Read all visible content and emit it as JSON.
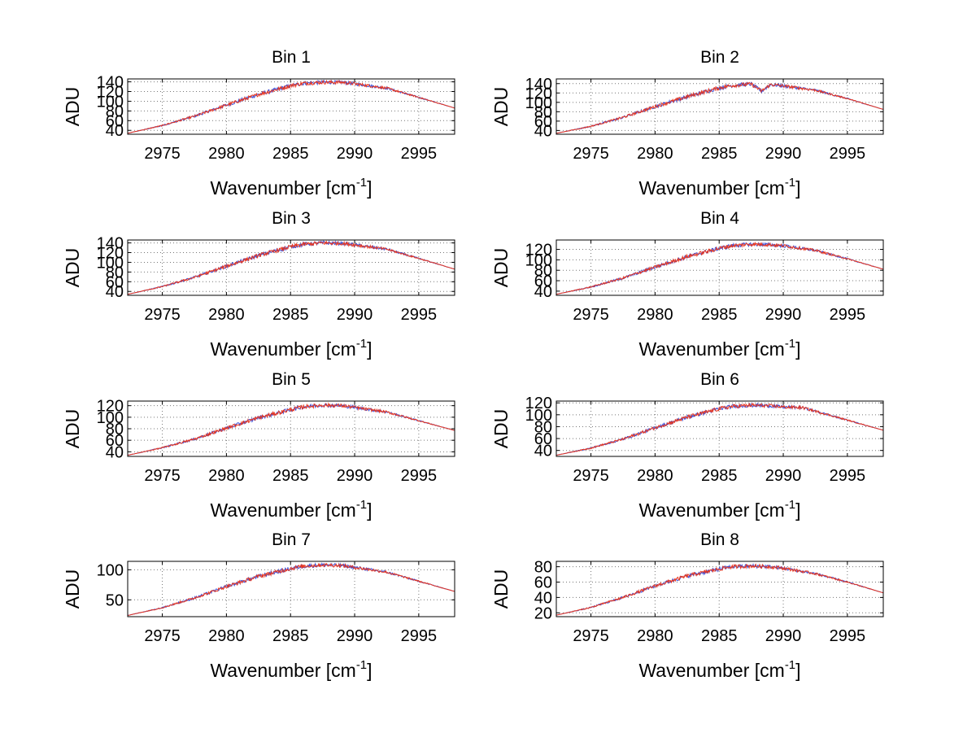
{
  "colors": {
    "series_blue": "#3b4fd8",
    "series_red": "#e8361f",
    "axis": "#000000",
    "grid": "#777777"
  },
  "chart_data": [
    {
      "type": "line",
      "title": "Bin 1",
      "xlabel": "Wavenumber",
      "xunit": "cm",
      "xunit_exp": "-1",
      "ylabel": "ADU",
      "xlim": [
        2972.3,
        2997.8
      ],
      "ylim": [
        32,
        146
      ],
      "xticks": [
        2975,
        2980,
        2985,
        2990,
        2995
      ],
      "yticks": [
        40,
        60,
        80,
        100,
        120,
        140
      ],
      "x": [
        2972.3,
        2975,
        2977.5,
        2980,
        2982.5,
        2985,
        2986,
        2987.5,
        2989,
        2990,
        2992.5,
        2995,
        2997.8
      ],
      "series": [
        {
          "name": "blue",
          "values": [
            34,
            50,
            69,
            92,
            114,
            132,
            137,
            139,
            139,
            136,
            127,
            108,
            86
          ]
        },
        {
          "name": "red",
          "values": [
            34,
            50,
            69,
            92,
            114,
            132,
            137,
            139,
            139,
            136,
            127,
            108,
            86
          ]
        }
      ]
    },
    {
      "type": "line",
      "title": "Bin 2",
      "xlabel": "Wavenumber",
      "xunit": "cm",
      "xunit_exp": "-1",
      "ylabel": "ADU",
      "xlim": [
        2972.3,
        2997.8
      ],
      "ylim": [
        32,
        150
      ],
      "xticks": [
        2975,
        2980,
        2985,
        2990,
        2995
      ],
      "yticks": [
        40,
        60,
        80,
        100,
        120,
        140
      ],
      "x": [
        2972.3,
        2975,
        2977.5,
        2980,
        2982.5,
        2985,
        2986,
        2987.5,
        2988.3,
        2989,
        2990,
        2992.5,
        2995,
        2997.8
      ],
      "series": [
        {
          "name": "blue",
          "values": [
            34,
            49,
            68,
            91,
            112,
            131,
            136,
            139,
            124,
            138,
            135,
            126,
            108,
            85
          ]
        },
        {
          "name": "red",
          "values": [
            34,
            49,
            68,
            91,
            112,
            131,
            136,
            139,
            124,
            138,
            135,
            126,
            108,
            85
          ]
        }
      ]
    },
    {
      "type": "line",
      "title": "Bin 3",
      "xlabel": "Wavenumber",
      "xunit": "cm",
      "xunit_exp": "-1",
      "ylabel": "ADU",
      "xlim": [
        2972.3,
        2997.8
      ],
      "ylim": [
        32,
        146
      ],
      "xticks": [
        2975,
        2980,
        2985,
        2990,
        2995
      ],
      "yticks": [
        40,
        60,
        80,
        100,
        120,
        140
      ],
      "x": [
        2972.3,
        2975,
        2977.5,
        2980,
        2982.5,
        2985,
        2986,
        2987.5,
        2989,
        2990,
        2992.5,
        2995,
        2997.8
      ],
      "series": [
        {
          "name": "blue",
          "values": [
            34,
            50,
            69,
            92,
            114,
            132,
            137,
            140,
            139,
            136,
            127,
            108,
            86
          ]
        },
        {
          "name": "red",
          "values": [
            34,
            50,
            69,
            92,
            114,
            132,
            137,
            140,
            139,
            136,
            127,
            108,
            86
          ]
        }
      ]
    },
    {
      "type": "line",
      "title": "Bin 4",
      "xlabel": "Wavenumber",
      "xunit": "cm",
      "xunit_exp": "-1",
      "ylabel": "ADU",
      "xlim": [
        2972.3,
        2997.8
      ],
      "ylim": [
        32,
        138
      ],
      "xticks": [
        2975,
        2980,
        2985,
        2990,
        2995
      ],
      "yticks": [
        40,
        60,
        80,
        100,
        120
      ],
      "x": [
        2972.3,
        2975,
        2977.5,
        2980,
        2982.5,
        2985,
        2986,
        2987.5,
        2989,
        2990,
        2992.5,
        2995,
        2997.8
      ],
      "series": [
        {
          "name": "blue",
          "values": [
            34,
            48,
            65,
            86,
            106,
            122,
            127,
            130,
            129,
            127,
            118,
            102,
            82
          ]
        },
        {
          "name": "red",
          "values": [
            34,
            48,
            65,
            86,
            106,
            122,
            127,
            130,
            129,
            127,
            118,
            102,
            82
          ]
        }
      ]
    },
    {
      "type": "line",
      "title": "Bin 5",
      "xlabel": "Wavenumber",
      "xunit": "cm",
      "xunit_exp": "-1",
      "ylabel": "ADU",
      "xlim": [
        2972.3,
        2997.8
      ],
      "ylim": [
        32,
        128
      ],
      "xticks": [
        2975,
        2980,
        2985,
        2990,
        2995
      ],
      "yticks": [
        40,
        60,
        80,
        100,
        120
      ],
      "x": [
        2972.3,
        2975,
        2977.5,
        2980,
        2982.5,
        2985,
        2986,
        2987.5,
        2989,
        2990,
        2992.5,
        2995,
        2997.8
      ],
      "series": [
        {
          "name": "blue",
          "values": [
            34,
            47,
            62,
            81,
            99,
            113,
            118,
            121,
            120,
            117,
            109,
            94,
            77
          ]
        },
        {
          "name": "red",
          "values": [
            34,
            47,
            62,
            81,
            99,
            113,
            118,
            121,
            120,
            117,
            109,
            94,
            77
          ]
        }
      ]
    },
    {
      "type": "line",
      "title": "Bin 6",
      "xlabel": "Wavenumber",
      "xunit": "cm",
      "xunit_exp": "-1",
      "ylabel": "ADU",
      "xlim": [
        2972.3,
        2997.8
      ],
      "ylim": [
        30,
        123
      ],
      "xticks": [
        2975,
        2980,
        2985,
        2990,
        2995
      ],
      "yticks": [
        40,
        60,
        80,
        100,
        120
      ],
      "x": [
        2972.3,
        2975,
        2977.5,
        2980,
        2982.5,
        2985,
        2986,
        2987.5,
        2989,
        2990,
        2991.5,
        2992.5,
        2995,
        2997.8
      ],
      "series": [
        {
          "name": "blue",
          "values": [
            32,
            44,
            59,
            78,
            96,
            110,
            114,
            116,
            115,
            113,
            112,
            106,
            91,
            74
          ]
        },
        {
          "name": "red",
          "values": [
            32,
            44,
            59,
            78,
            96,
            110,
            114,
            116,
            115,
            113,
            112,
            106,
            91,
            74
          ]
        }
      ]
    },
    {
      "type": "line",
      "title": "Bin 7",
      "xlabel": "Wavenumber",
      "xunit": "cm",
      "xunit_exp": "-1",
      "ylabel": "ADU",
      "xlim": [
        2972.3,
        2997.8
      ],
      "ylim": [
        22,
        114
      ],
      "xticks": [
        2975,
        2980,
        2985,
        2990,
        2995
      ],
      "yticks": [
        50,
        100
      ],
      "x": [
        2972.3,
        2975,
        2977.5,
        2980,
        2982.5,
        2985,
        2986,
        2987.5,
        2989,
        2990,
        2992.5,
        2995,
        2997.8
      ],
      "series": [
        {
          "name": "blue",
          "values": [
            24,
            37,
            53,
            72,
            89,
            102,
            106,
            108,
            107,
            104,
            96,
            81,
            64
          ]
        },
        {
          "name": "red",
          "values": [
            24,
            37,
            53,
            72,
            89,
            102,
            106,
            108,
            107,
            104,
            96,
            81,
            64
          ]
        }
      ]
    },
    {
      "type": "line",
      "title": "Bin 8",
      "xlabel": "Wavenumber",
      "xunit": "cm",
      "xunit_exp": "-1",
      "ylabel": "ADU",
      "xlim": [
        2972.3,
        2997.8
      ],
      "ylim": [
        15,
        87
      ],
      "xticks": [
        2975,
        2980,
        2985,
        2990,
        2995
      ],
      "yticks": [
        20,
        40,
        60,
        80
      ],
      "x": [
        2972.3,
        2975,
        2977.5,
        2980,
        2982.5,
        2985,
        2986,
        2987.5,
        2989,
        2990,
        2992.5,
        2995,
        2997.8
      ],
      "series": [
        {
          "name": "blue",
          "values": [
            17,
            27,
            40,
            55,
            68,
            77,
            80,
            81,
            80,
            78,
            71,
            60,
            46
          ]
        },
        {
          "name": "red",
          "values": [
            17,
            27,
            40,
            55,
            68,
            77,
            80,
            81,
            80,
            78,
            71,
            60,
            46
          ]
        }
      ]
    }
  ]
}
